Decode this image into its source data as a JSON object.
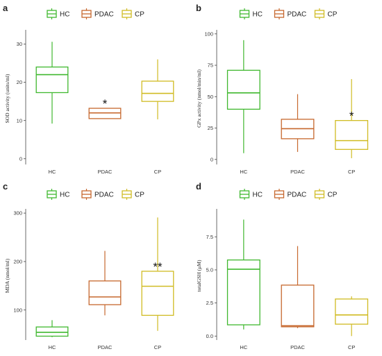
{
  "colors": {
    "HC": "#3fb82e",
    "PDAC": "#c6672d",
    "CP": "#d0bb22",
    "axis": "#444444"
  },
  "chart_data": [
    {
      "panel": "a",
      "type": "box",
      "legend": [
        "HC",
        "PDAC",
        "CP"
      ],
      "legend_position": "top",
      "categories": [
        "HC",
        "PDAC",
        "CP"
      ],
      "ylabel": "SOD activity (units/ml)",
      "ylim": [
        -1.5,
        33
      ],
      "yticks": [
        0,
        10,
        20,
        30
      ],
      "boxes": [
        {
          "group": "HC",
          "min": 9.2,
          "q1": 17.3,
          "median": 22.0,
          "q3": 24.0,
          "max": 30.6
        },
        {
          "group": "PDAC",
          "min": 10.5,
          "q1": 10.5,
          "median": 12.0,
          "q3": 13.2,
          "max": 13.2
        },
        {
          "group": "CP",
          "min": 10.3,
          "q1": 15.0,
          "median": 17.1,
          "q3": 20.3,
          "max": 26.0
        }
      ],
      "annotations": [
        {
          "group": "PDAC",
          "text": "*"
        }
      ]
    },
    {
      "panel": "b",
      "type": "box",
      "legend": [
        "HC",
        "PDAC",
        "CP"
      ],
      "legend_position": "top",
      "categories": [
        "HC",
        "PDAC",
        "CP"
      ],
      "ylabel": "GPx activity (nmol/min/ml)",
      "ylim": [
        -4,
        101
      ],
      "yticks": [
        0,
        25,
        50,
        75,
        100
      ],
      "boxes": [
        {
          "group": "HC",
          "min": 5,
          "q1": 40,
          "median": 53,
          "q3": 71,
          "max": 95
        },
        {
          "group": "PDAC",
          "min": 6,
          "q1": 16.5,
          "median": 24.5,
          "q3": 32,
          "max": 52
        },
        {
          "group": "CP",
          "min": 1,
          "q1": 8,
          "median": 15,
          "q3": 31,
          "max": 64
        }
      ],
      "annotations": [
        {
          "group": "CP",
          "text": "*"
        }
      ]
    },
    {
      "panel": "c",
      "type": "box",
      "legend": [
        "HC",
        "PDAC",
        "CP"
      ],
      "legend_position": "top",
      "categories": [
        "HC",
        "PDAC",
        "CP"
      ],
      "ylabel": "MDA (nmol/ml)",
      "ylim": [
        38,
        303
      ],
      "yticks": [
        100,
        200,
        300
      ],
      "boxes": [
        {
          "group": "HC",
          "min": 44,
          "q1": 46,
          "median": 54,
          "q3": 65,
          "max": 79
        },
        {
          "group": "PDAC",
          "min": 89,
          "q1": 111,
          "median": 127,
          "q3": 160,
          "max": 222
        },
        {
          "group": "CP",
          "min": 57,
          "q1": 89,
          "median": 149,
          "q3": 180,
          "max": 291
        }
      ],
      "annotations": [
        {
          "group": "CP",
          "text": "**"
        }
      ]
    },
    {
      "panel": "d",
      "type": "box",
      "legend": [
        "HC",
        "PDAC",
        "CP"
      ],
      "legend_position": "top",
      "categories": [
        "HC",
        "PDAC",
        "CP"
      ],
      "ylabel": "totalGSH (μM)",
      "ylim": [
        -0.3,
        9.4
      ],
      "yticks": [
        0.0,
        2.5,
        5.0,
        7.5
      ],
      "ytick_labels": [
        "0.0",
        "2.5",
        "5.0",
        "7.5"
      ],
      "boxes": [
        {
          "group": "HC",
          "min": 0.5,
          "q1": 0.85,
          "median": 5.05,
          "q3": 5.75,
          "max": 8.8
        },
        {
          "group": "PDAC",
          "min": 0.6,
          "q1": 0.7,
          "median": 0.78,
          "q3": 3.85,
          "max": 6.8
        },
        {
          "group": "CP",
          "min": 0.0,
          "q1": 0.9,
          "median": 1.6,
          "q3": 2.8,
          "max": 3.0
        }
      ],
      "annotations": []
    }
  ]
}
